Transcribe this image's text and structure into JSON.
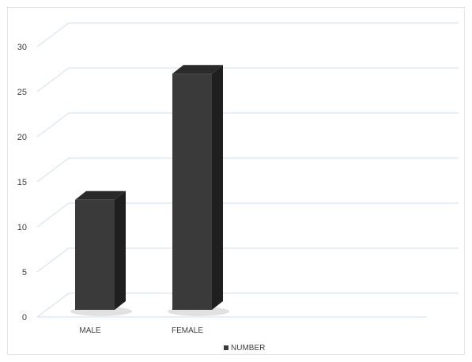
{
  "chart_data": {
    "type": "bar",
    "style": "3d-column",
    "categories": [
      "MALE",
      "FEMALE"
    ],
    "series": [
      {
        "name": "NUMBER",
        "values": [
          13,
          27
        ]
      }
    ],
    "y_ticks": [
      "0",
      "5",
      "10",
      "15",
      "20",
      "25",
      "30"
    ],
    "ylim": [
      0,
      30
    ],
    "grid": true,
    "legend_position": "bottom",
    "colors": {
      "bar_front": "#3a3a3a",
      "bar_side": "#1f1f1f",
      "bar_top": "#2a2a2a",
      "gridline": "#cfe0e8",
      "text": "#404040"
    }
  }
}
